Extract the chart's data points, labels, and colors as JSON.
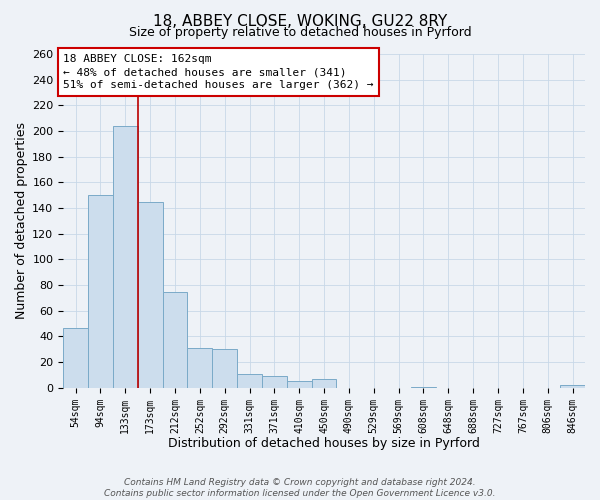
{
  "title": "18, ABBEY CLOSE, WOKING, GU22 8RY",
  "subtitle": "Size of property relative to detached houses in Pyrford",
  "xlabel": "Distribution of detached houses by size in Pyrford",
  "ylabel": "Number of detached properties",
  "bar_color": "#ccdded",
  "bar_edge_color": "#7aaac8",
  "categories": [
    "54sqm",
    "94sqm",
    "133sqm",
    "173sqm",
    "212sqm",
    "252sqm",
    "292sqm",
    "331sqm",
    "371sqm",
    "410sqm",
    "450sqm",
    "490sqm",
    "529sqm",
    "569sqm",
    "608sqm",
    "648sqm",
    "688sqm",
    "727sqm",
    "767sqm",
    "806sqm",
    "846sqm"
  ],
  "values": [
    47,
    150,
    204,
    145,
    75,
    31,
    30,
    11,
    9,
    5,
    7,
    0,
    0,
    0,
    1,
    0,
    0,
    0,
    0,
    0,
    2
  ],
  "vline_x_idx": 3,
  "vline_color": "#bb0000",
  "annotation_title": "18 ABBEY CLOSE: 162sqm",
  "annotation_line1": "← 48% of detached houses are smaller (341)",
  "annotation_line2": "51% of semi-detached houses are larger (362) →",
  "annotation_box_color": "#ffffff",
  "annotation_box_edge": "#cc0000",
  "ylim": [
    0,
    260
  ],
  "yticks": [
    0,
    20,
    40,
    60,
    80,
    100,
    120,
    140,
    160,
    180,
    200,
    220,
    240,
    260
  ],
  "footer1": "Contains HM Land Registry data © Crown copyright and database right 2024.",
  "footer2": "Contains public sector information licensed under the Open Government Licence v3.0.",
  "bg_color": "#eef2f7",
  "grid_color": "#c8d8e8"
}
